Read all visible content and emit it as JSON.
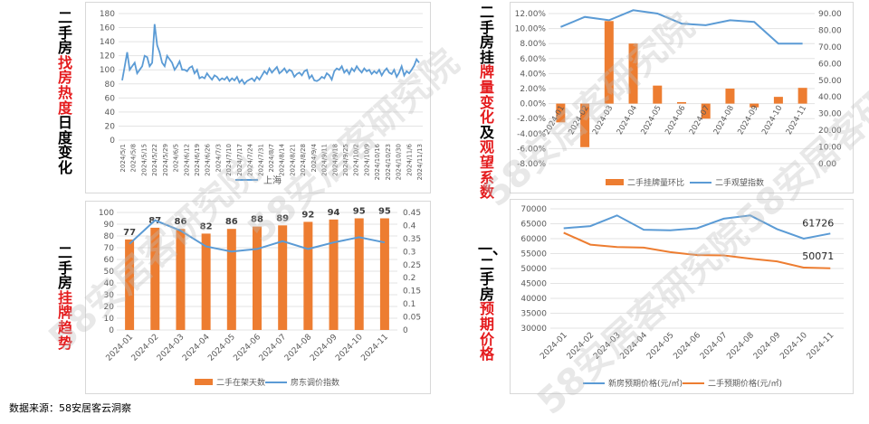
{
  "titles": {
    "t1_black": "二手房",
    "t1_red": "找房热度",
    "t1_black2": "日度变化",
    "t2_black": "二手房挂",
    "t2_red": "牌量变化",
    "t2_black2": "及",
    "t2_red2": "观望系数",
    "t3_black": "二手房",
    "t3_red": "挂牌趋势",
    "t4_black": "一、二手房",
    "t4_red": "预期价格"
  },
  "source": "数据来源：58安居客云洞察",
  "watermark": "58安居客研究院",
  "colors": {
    "blue": "#5b9bd5",
    "orange": "#ed7d31",
    "red": "#e41a1c"
  },
  "chart_data": [
    {
      "id": "heat",
      "type": "line",
      "title": "",
      "ylim": [
        0,
        180
      ],
      "yticks": [
        0,
        20,
        40,
        60,
        80,
        100,
        120,
        140,
        160,
        180
      ],
      "xlabels": [
        "2024/5/1",
        "2024/5/8",
        "2024/5/15",
        "2024/5/22",
        "2024/5/29",
        "2024/6/5",
        "2024/6/12",
        "2024/6/19",
        "2024/6/26",
        "2024/7/3",
        "2024/7/10",
        "2024/7/17",
        "2024/7/24",
        "2024/7/31",
        "2024/8/7",
        "2024/8/14",
        "2024/8/21",
        "2024/8/28",
        "2024/9/4",
        "2024/9/11",
        "2024/9/18",
        "2024/9/25",
        "2024/10/2",
        "2024/10/9",
        "2024/10/16",
        "2024/10/23",
        "2024/10/30",
        "2024/11/6",
        "2024/11/13"
      ],
      "legend": "上海",
      "values": [
        85,
        105,
        125,
        100,
        105,
        110,
        95,
        100,
        105,
        120,
        118,
        105,
        110,
        165,
        135,
        125,
        110,
        105,
        120,
        115,
        110,
        100,
        105,
        112,
        100,
        100,
        98,
        103,
        105,
        95,
        100,
        88,
        90,
        88,
        95,
        90,
        86,
        92,
        90,
        85,
        88,
        86,
        90,
        84,
        88,
        85,
        90,
        82,
        86,
        80,
        84,
        86,
        88,
        84,
        90,
        86,
        92,
        98,
        94,
        102,
        96,
        100,
        104,
        95,
        98,
        102,
        96,
        100,
        98,
        90,
        94,
        96,
        92,
        98,
        100,
        88,
        92,
        85,
        84,
        86,
        90,
        88,
        95,
        92,
        86,
        98,
        102,
        100,
        105,
        96,
        100,
        94,
        102,
        98,
        105,
        100,
        96,
        102,
        98,
        100,
        94,
        98,
        95,
        100,
        92,
        98,
        102,
        96,
        94,
        100,
        90,
        96,
        105,
        92,
        98,
        95,
        100,
        106,
        115,
        110
      ]
    },
    {
      "id": "listing",
      "type": "bar+line",
      "categories": [
        "2024-01",
        "2024-02",
        "2024-03",
        "2024-04",
        "2024-05",
        "2024-06",
        "2024-07",
        "2024-08",
        "2024-09",
        "2024-10",
        "2024-11"
      ],
      "series": [
        {
          "name": "二手挂牌量环比",
          "type": "bar",
          "values": [
            -2.5,
            -5.8,
            11.0,
            8.0,
            2.4,
            0.2,
            -2.0,
            2.0,
            -0.5,
            0.9,
            2.1
          ]
        },
        {
          "name": "二手观望指数",
          "type": "line",
          "values": [
            82,
            88,
            86,
            92,
            90,
            84,
            83,
            86,
            85,
            72,
            72
          ]
        }
      ],
      "ylim_left": [
        -8,
        12
      ],
      "yticks_left": [
        "-8.00%",
        "-6.00%",
        "-4.00%",
        "-2.00%",
        "0.00%",
        "2.00%",
        "4.00%",
        "6.00%",
        "8.00%",
        "10.00%",
        "12.00%"
      ],
      "ylim_right": [
        0,
        90
      ],
      "yticks_right": [
        "0.00",
        "10.00",
        "20.00",
        "30.00",
        "40.00",
        "50.00",
        "60.00",
        "70.00",
        "80.00",
        "90.00"
      ]
    },
    {
      "id": "trend",
      "type": "bar+line",
      "categories": [
        "2024-01",
        "2024-02",
        "2024-03",
        "2024-04",
        "2024-05",
        "2024-06",
        "2024-07",
        "2024-08",
        "2024-09",
        "2024-10",
        "2024-11"
      ],
      "series": [
        {
          "name": "二手在架天数",
          "type": "bar",
          "values": [
            77,
            87,
            86,
            82,
            86,
            88,
            89,
            92,
            94,
            95,
            95
          ]
        },
        {
          "name": "房东调价指数",
          "type": "line",
          "values": [
            0.33,
            0.42,
            0.38,
            0.32,
            0.3,
            0.31,
            0.34,
            0.31,
            0.335,
            0.355,
            0.335
          ]
        }
      ],
      "ylim_left": [
        0,
        100
      ],
      "yticks_left": [
        "0",
        "10",
        "20",
        "30",
        "40",
        "50",
        "60",
        "70",
        "80",
        "90",
        "100"
      ],
      "ylim_right": [
        0,
        0.45
      ],
      "yticks_right": [
        "0",
        "0.05",
        "0.1",
        "0.15",
        "0.2",
        "0.25",
        "0.3",
        "0.35",
        "0.4",
        "0.45"
      ]
    },
    {
      "id": "price",
      "type": "line",
      "categories": [
        "2024-01",
        "2024-02",
        "2024-03",
        "2024-04",
        "2024-05",
        "2024-06",
        "2024-07",
        "2024-08",
        "2024-09",
        "2024-10",
        "2024-11"
      ],
      "series": [
        {
          "name": "新房预期价格(元/㎡)",
          "values": [
            63500,
            64200,
            67800,
            63000,
            62800,
            63500,
            66700,
            67800,
            63200,
            60000,
            61726
          ]
        },
        {
          "name": "二手预期价格(元/㎡)",
          "values": [
            62000,
            58000,
            57200,
            57000,
            55500,
            54500,
            54400,
            53300,
            52400,
            50300,
            50071
          ]
        }
      ],
      "end_labels": [
        "61726",
        "50071"
      ],
      "ylim": [
        30000,
        70000
      ],
      "yticks": [
        "30000",
        "35000",
        "40000",
        "45000",
        "50000",
        "55000",
        "60000",
        "65000",
        "70000"
      ]
    }
  ]
}
